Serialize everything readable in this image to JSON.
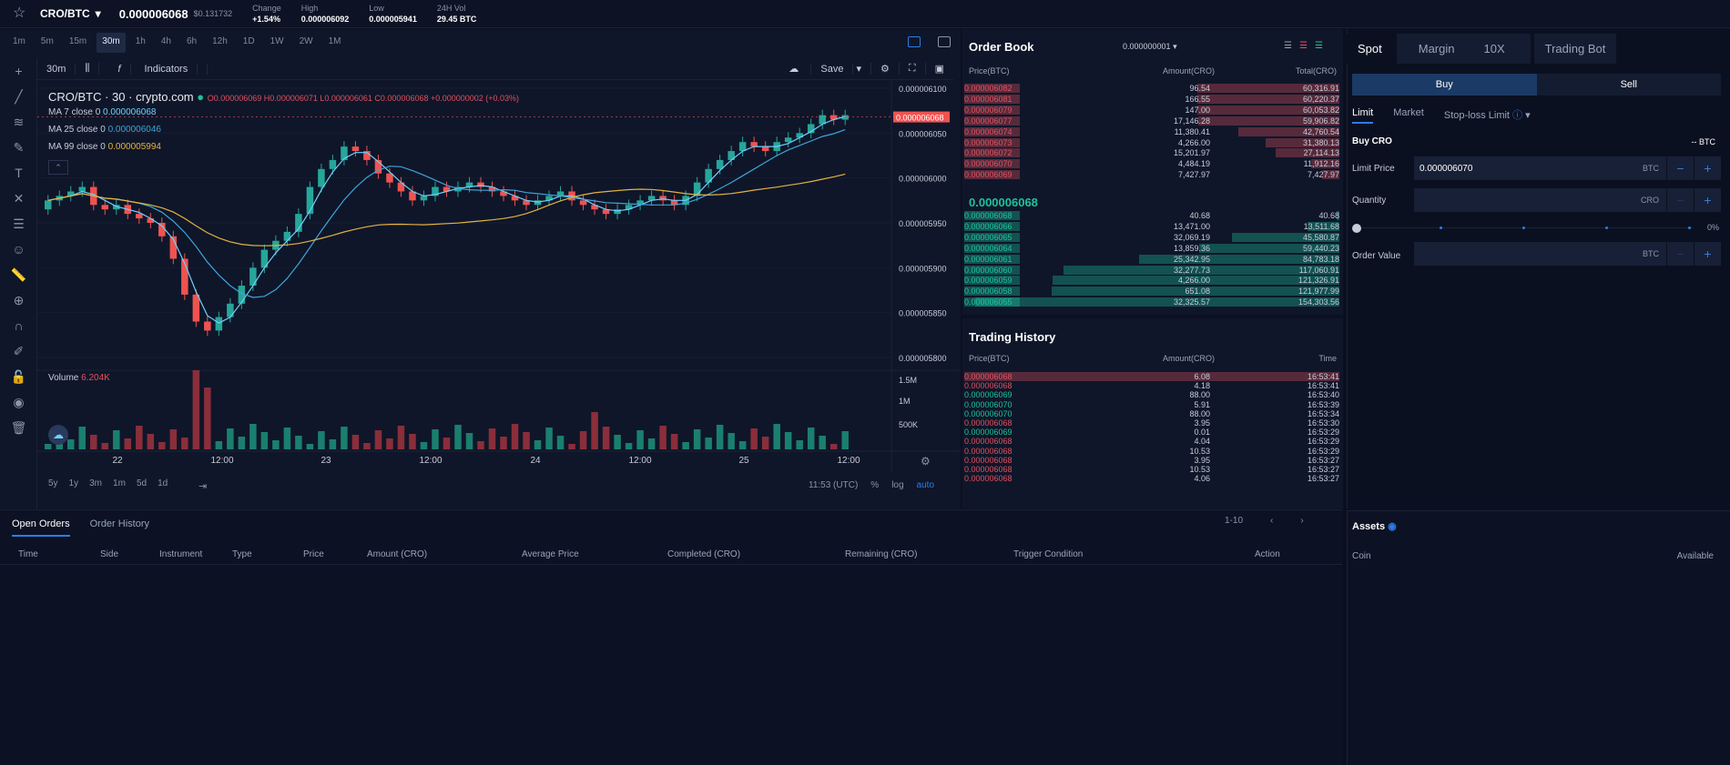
{
  "topbar": {
    "pair": "CRO/BTC",
    "last_price": "0.000006068",
    "usd_price": "$0.131732",
    "change_label": "Change",
    "change_value": "+1.54%",
    "high_label": "High",
    "high_value": "0.000006092",
    "low_label": "Low",
    "low_value": "0.000005941",
    "vol_label": "24H Vol",
    "vol_value": "29.45 BTC"
  },
  "timeframes": [
    "1m",
    "5m",
    "15m",
    "30m",
    "1h",
    "4h",
    "6h",
    "12h",
    "1D",
    "1W",
    "2W",
    "1M"
  ],
  "active_timeframe": "30m",
  "chart_toolbar": {
    "interval": "30m",
    "indicators": "Indicators",
    "save": "Save"
  },
  "legend": {
    "title": "CRO/BTC · 30 · crypto.com",
    "ohlc": "O0.000006069 H0.000006071 L0.000006061 C0.000006068 +0.000000002 (+0.03%)",
    "ma7": "MA 7 close 0",
    "ma7_val": "0.000006068",
    "ma25": "MA 25 close 0",
    "ma25_val": "0.000006046",
    "ma99": "MA 99 close 0",
    "ma99_val": "0.000005994",
    "volume": "Volume",
    "volume_val": "6.204K"
  },
  "price_axis": [
    "0.000006100",
    "0.000006050",
    "0.000006000",
    "0.000005950",
    "0.000005900",
    "0.000005850",
    "0.000005800"
  ],
  "current_price_tag": "0.000006068",
  "vol_axis": [
    "1.5M",
    "1M",
    "500K"
  ],
  "time_axis": [
    "22",
    "12:00",
    "23",
    "12:00",
    "24",
    "12:00",
    "25",
    "12:00"
  ],
  "range_buttons": [
    "5y",
    "1y",
    "3m",
    "1m",
    "5d",
    "1d"
  ],
  "chart_footer": {
    "time": "11:53 (UTC)",
    "pct": "%",
    "log": "log",
    "auto": "auto"
  },
  "chart_data": {
    "type": "candlestick",
    "title": "CRO/BTC · 30 · crypto.com",
    "ylim": [
      5.8e-06,
      6.1e-06
    ],
    "series": [
      {
        "name": "MA 7 close 0",
        "color": "#6fd0ff"
      },
      {
        "name": "MA 25 close 0",
        "color": "#3ea4d8"
      },
      {
        "name": "MA 99 close 0",
        "color": "#e3b341"
      }
    ],
    "close": [
      5.975,
      5.98,
      5.985,
      5.99,
      5.97,
      5.965,
      5.97,
      5.96,
      5.955,
      5.95,
      5.935,
      5.91,
      5.87,
      5.84,
      5.83,
      5.845,
      5.86,
      5.88,
      5.9,
      5.92,
      5.93,
      5.94,
      5.96,
      5.99,
      6.01,
      6.02,
      6.035,
      6.03,
      6.02,
      6.005,
      5.995,
      5.985,
      5.975,
      5.98,
      5.99,
      5.985,
      5.99,
      5.995,
      5.99,
      5.985,
      5.98,
      5.975,
      5.97,
      5.975,
      5.98,
      5.985,
      5.975,
      5.97,
      5.965,
      5.96,
      5.965,
      5.97,
      5.975,
      5.98,
      5.975,
      5.97,
      5.98,
      5.995,
      6.01,
      6.02,
      6.03,
      6.04,
      6.035,
      6.03,
      6.04,
      6.045,
      6.05,
      6.06,
      6.07,
      6.065,
      6.07
    ],
    "volume_color_up": "#1a7f6e",
    "volume_color_down": "#8a2e3a"
  },
  "orderbook": {
    "title": "Order Book",
    "precision": "0.000000001",
    "headers": [
      "Price(BTC)",
      "Amount(CRO)",
      "Total(CRO)"
    ],
    "asks": [
      [
        "0.000006082",
        "96.54",
        "60,316.91"
      ],
      [
        "0.000006081",
        "166.55",
        "60,220.37"
      ],
      [
        "0.000006079",
        "147.00",
        "60,053.82"
      ],
      [
        "0.000006077",
        "17,146.28",
        "59,906.82"
      ],
      [
        "0.000006074",
        "11,380.41",
        "42,760.54"
      ],
      [
        "0.000006073",
        "4,266.00",
        "31,380.13"
      ],
      [
        "0.000006072",
        "15,201.97",
        "27,114.13"
      ],
      [
        "0.000006070",
        "4,484.19",
        "11,912.16"
      ],
      [
        "0.000006069",
        "7,427.97",
        "7,427.97"
      ]
    ],
    "mid": "0.000006068",
    "bids": [
      [
        "0.000006068",
        "40.68",
        "40.68"
      ],
      [
        "0.000006066",
        "13,471.00",
        "13,511.68"
      ],
      [
        "0.000006065",
        "32,069.19",
        "45,580.87"
      ],
      [
        "0.000006064",
        "13,859.36",
        "59,440.23"
      ],
      [
        "0.000006061",
        "25,342.95",
        "84,783.18"
      ],
      [
        "0.000006060",
        "32,277.73",
        "117,060.91"
      ],
      [
        "0.000006059",
        "4,266.00",
        "121,326.91"
      ],
      [
        "0.000006058",
        "651.08",
        "121,977.99"
      ],
      [
        "0.000006055",
        "32,325.57",
        "154,303.56"
      ]
    ]
  },
  "trades": {
    "title": "Trading History",
    "headers": [
      "Price(BTC)",
      "Amount(CRO)",
      "Time"
    ],
    "rows": [
      [
        "0.000006068",
        "6.08",
        "16:53:41",
        "sell"
      ],
      [
        "0.000006068",
        "4.18",
        "16:53:41",
        "sell"
      ],
      [
        "0.000006069",
        "88.00",
        "16:53:40",
        "buy"
      ],
      [
        "0.000006070",
        "5.91",
        "16:53:39",
        "buy"
      ],
      [
        "0.000006070",
        "88.00",
        "16:53:34",
        "buy"
      ],
      [
        "0.000006068",
        "3.95",
        "16:53:30",
        "sell"
      ],
      [
        "0.000006069",
        "0.01",
        "16:53:29",
        "buy"
      ],
      [
        "0.000006068",
        "4.04",
        "16:53:29",
        "sell"
      ],
      [
        "0.000006068",
        "10.53",
        "16:53:29",
        "sell"
      ],
      [
        "0.000006068",
        "3.95",
        "16:53:27",
        "sell"
      ],
      [
        "0.000006068",
        "10.53",
        "16:53:27",
        "sell"
      ],
      [
        "0.000006068",
        "4.06",
        "16:53:27",
        "sell"
      ]
    ]
  },
  "trade_panel": {
    "tabs": [
      "Spot",
      "Margin",
      "Trading Bot"
    ],
    "margin_badge": "10X",
    "buy": "Buy",
    "sell": "Sell",
    "order_types": [
      "Limit",
      "Market",
      "Stop-loss Limit"
    ],
    "buy_label": "Buy CRO",
    "balance": "-- BTC",
    "limit_price_label": "Limit Price",
    "limit_price": "0.000006070",
    "limit_cur": "BTC",
    "quantity_label": "Quantity",
    "quantity_cur": "CRO",
    "slider_pct": "0%",
    "order_value_label": "Order Value",
    "order_value_cur": "BTC"
  },
  "orders": {
    "tabs": [
      "Open Orders",
      "Order History"
    ],
    "pagination": "1-10",
    "columns": [
      "Time",
      "Side",
      "Instrument",
      "Type",
      "Price",
      "Amount (CRO)",
      "Average Price",
      "Completed (CRO)",
      "Remaining (CRO)",
      "Trigger Condition",
      "Action"
    ]
  },
  "assets": {
    "title": "Assets",
    "coin": "Coin",
    "available": "Available"
  }
}
